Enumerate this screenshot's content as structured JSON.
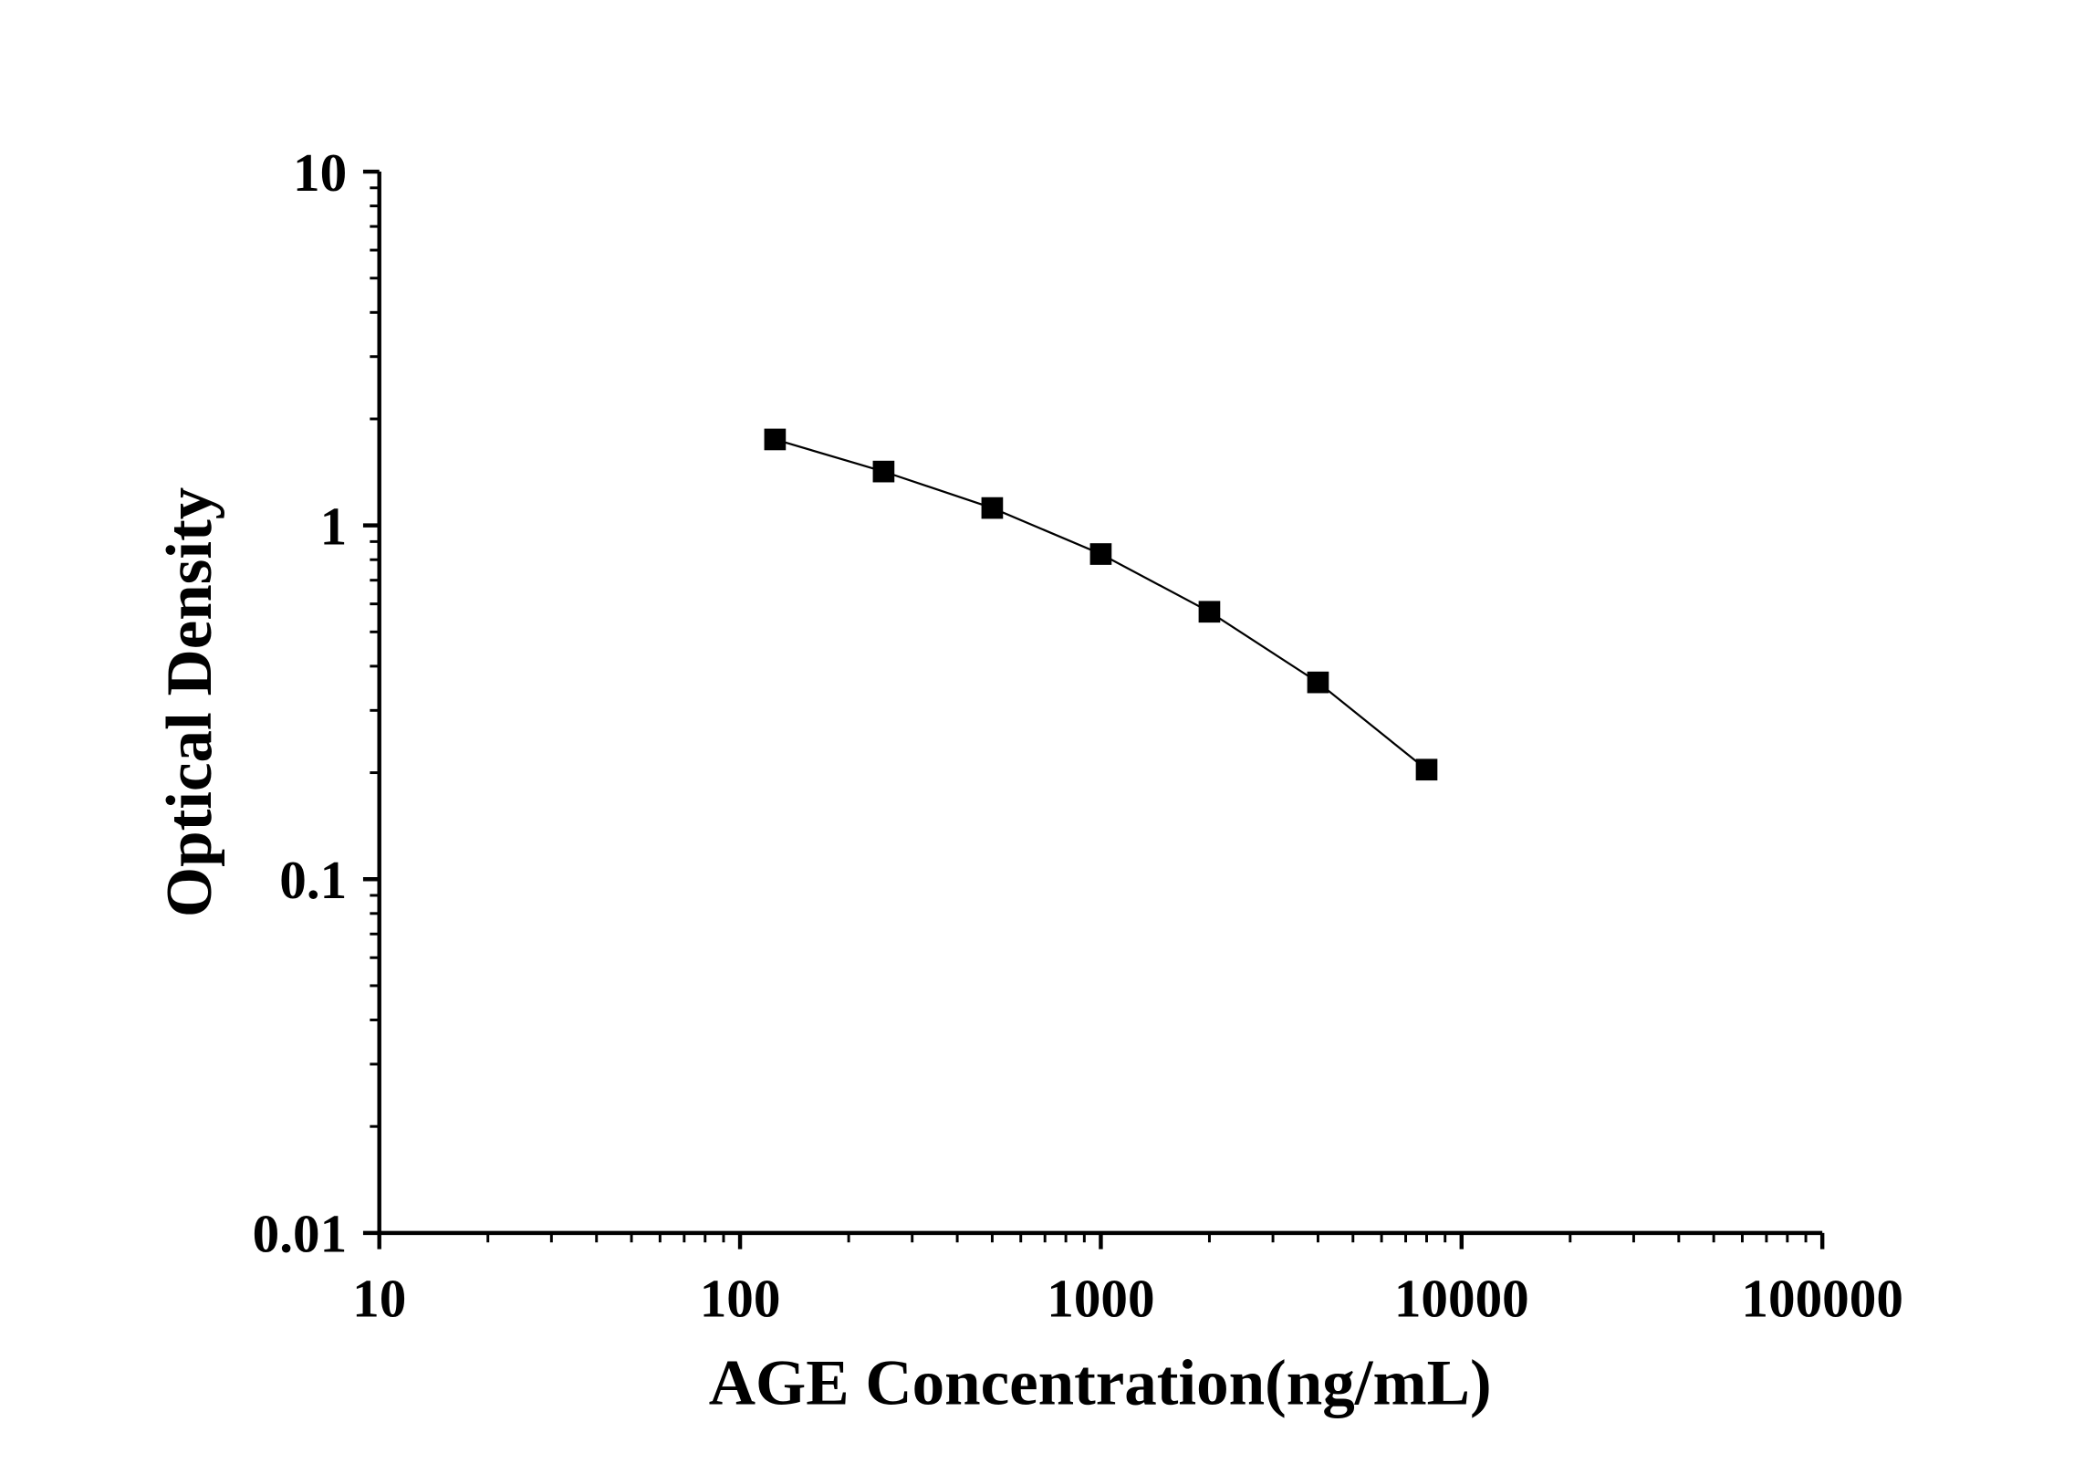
{
  "chart_data": {
    "type": "line",
    "xlabel": "AGE Concentration(ng/mL)",
    "ylabel": "Optical Density",
    "xscale": "log",
    "yscale": "log",
    "xlim": [
      10,
      100000
    ],
    "ylim": [
      0.01,
      10
    ],
    "xticks": [
      "10",
      "100",
      "1000",
      "10000",
      "100000"
    ],
    "yticks": [
      "0.01",
      "0.1",
      "1",
      "10"
    ],
    "grid": false,
    "marker": "square",
    "color": "#000000",
    "series": [
      {
        "x": [
          125,
          250,
          500,
          1000,
          2000,
          4000,
          8000
        ],
        "y": [
          1.75,
          1.42,
          1.12,
          0.83,
          0.57,
          0.36,
          0.204
        ]
      }
    ]
  }
}
